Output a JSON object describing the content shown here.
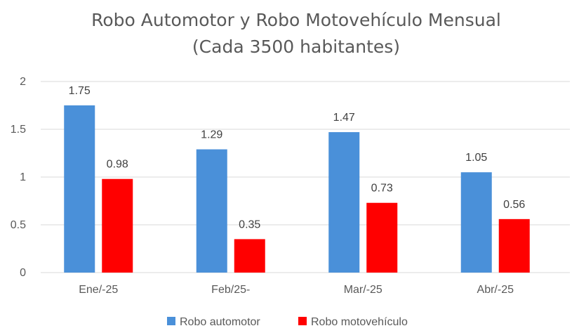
{
  "chart_data": {
    "type": "bar",
    "title": "Robo Automotor y Robo Motovehículo Mensual",
    "subtitle": "(Cada 3500 habitantes)",
    "categories": [
      "Ene/-25",
      "Feb/25-",
      "Mar/-25",
      "Abr/-25"
    ],
    "series": [
      {
        "name": "Robo automotor",
        "values": [
          1.75,
          1.29,
          1.47,
          1.05
        ],
        "color": "#4a90d9"
      },
      {
        "name": "Robo motovehículo",
        "values": [
          0.98,
          0.35,
          0.73,
          0.56
        ],
        "color": "#ff0000"
      }
    ],
    "ylim": [
      0,
      2
    ],
    "yticks": [
      0,
      0.5,
      1,
      1.5,
      2
    ],
    "ytick_labels": [
      "0",
      "0.5",
      "1",
      "1.5",
      "2"
    ],
    "grid": true,
    "legend_position": "bottom",
    "data_labels": true
  }
}
